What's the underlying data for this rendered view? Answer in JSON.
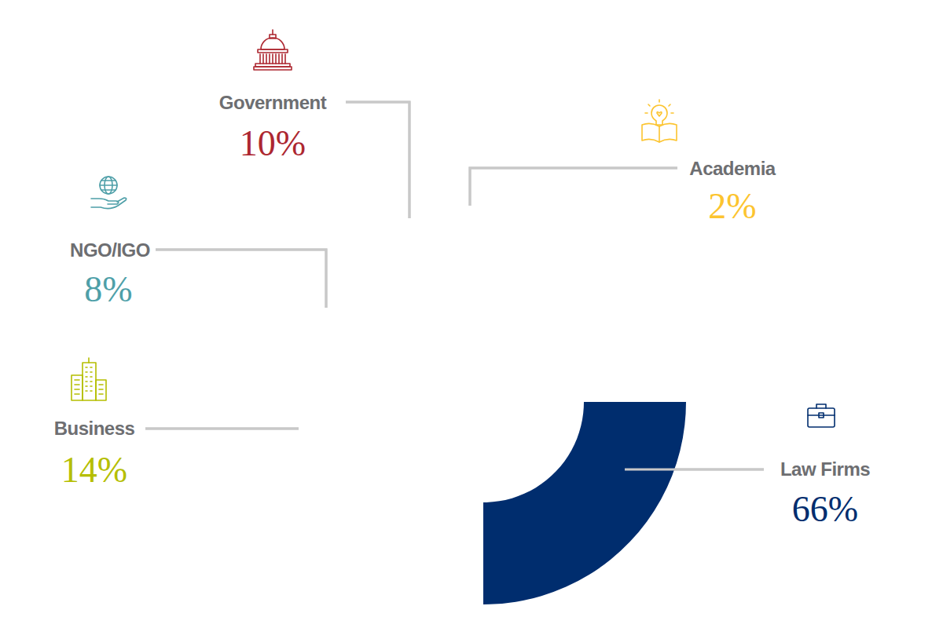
{
  "chart_data": {
    "type": "donut",
    "categories": [
      "Law Firms",
      "Business",
      "NGO/IGO",
      "Government",
      "Academia"
    ],
    "values": [
      66,
      14,
      8,
      10,
      2
    ],
    "value_labels": [
      "66%",
      "14%",
      "8%",
      "10%",
      "2%"
    ],
    "colors": [
      "#002d6e",
      "#b5be00",
      "#4e9fa8",
      "#ad2730",
      "#fcc42f"
    ],
    "data_labels": true
  }
}
